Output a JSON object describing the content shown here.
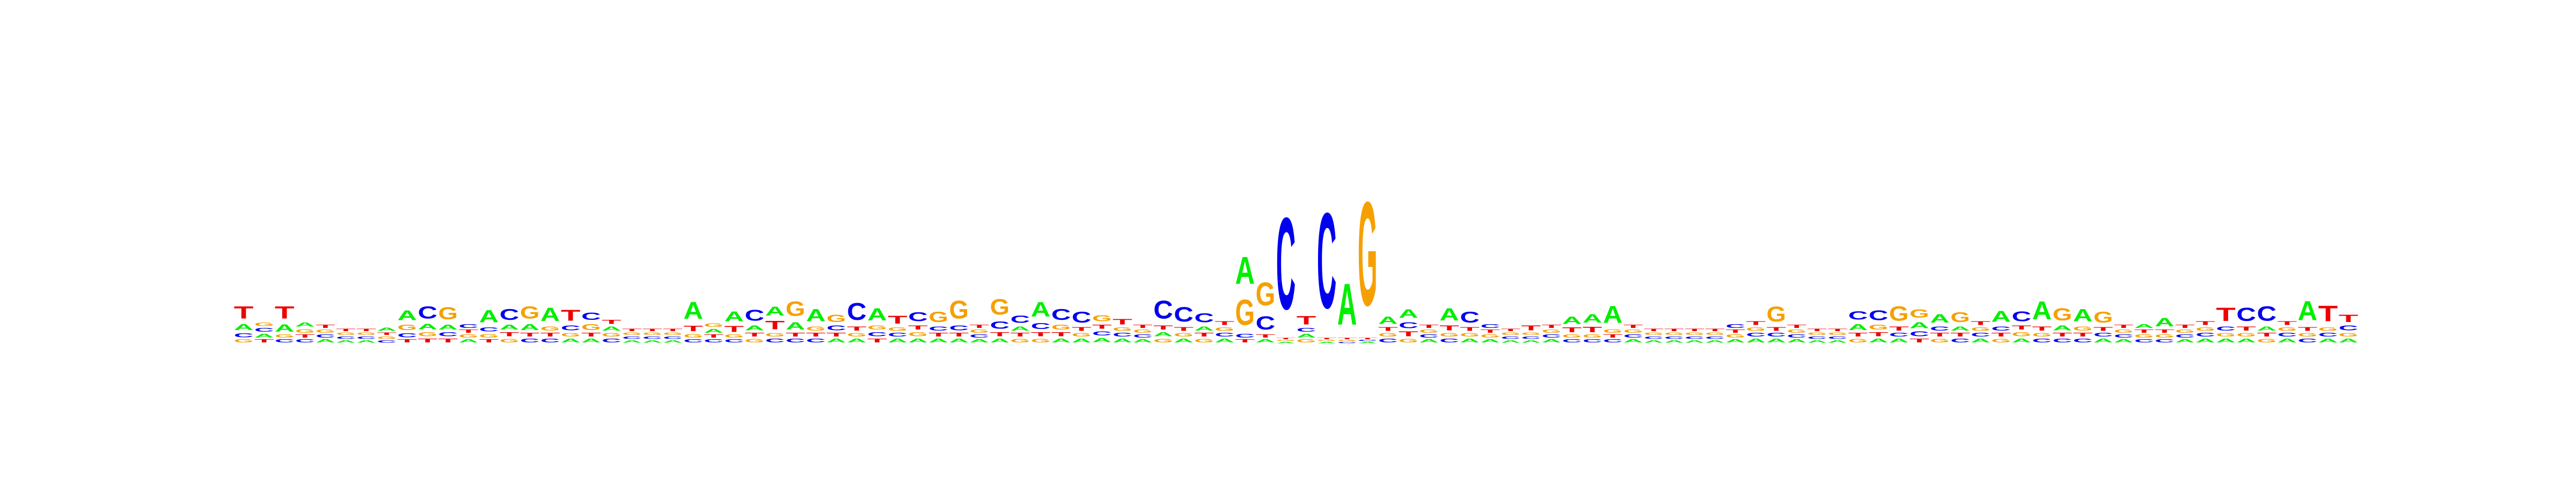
{
  "logo": {
    "type": "sequence-logo",
    "alphabet": [
      "A",
      "C",
      "G",
      "T"
    ],
    "colors": {
      "A": "#00ee00",
      "C": "#0000ee",
      "G": "#f5a000",
      "T": "#ee0000"
    },
    "max_bits": 2.0,
    "positions": [
      {
        "A": 0.1,
        "C": 0.07,
        "G": 0.05,
        "T": 0.2
      },
      {
        "A": 0.06,
        "C": 0.06,
        "G": 0.06,
        "T": 0.05
      },
      {
        "A": 0.12,
        "C": 0.05,
        "G": 0.05,
        "T": 0.2
      },
      {
        "A": 0.07,
        "C": 0.05,
        "G": 0.06,
        "T": 0.05
      },
      {
        "A": 0.05,
        "C": 0.05,
        "G": 0.05,
        "T": 0.05
      },
      {
        "A": 0.04,
        "C": 0.04,
        "G": 0.04,
        "T": 0.04
      },
      {
        "A": 0.04,
        "C": 0.04,
        "G": 0.04,
        "T": 0.04
      },
      {
        "A": 0.05,
        "C": 0.04,
        "G": 0.04,
        "T": 0.04
      },
      {
        "A": 0.16,
        "C": 0.07,
        "G": 0.09,
        "T": 0.05
      },
      {
        "A": 0.09,
        "C": 0.2,
        "G": 0.07,
        "T": 0.06
      },
      {
        "A": 0.08,
        "C": 0.07,
        "G": 0.2,
        "T": 0.06
      },
      {
        "A": 0.05,
        "C": 0.06,
        "G": 0.05,
        "T": 0.05
      },
      {
        "A": 0.2,
        "C": 0.07,
        "G": 0.06,
        "T": 0.05
      },
      {
        "A": 0.08,
        "C": 0.18,
        "G": 0.06,
        "T": 0.07
      },
      {
        "A": 0.1,
        "C": 0.06,
        "G": 0.2,
        "T": 0.06
      },
      {
        "A": 0.22,
        "C": 0.06,
        "G": 0.07,
        "T": 0.06
      },
      {
        "A": 0.06,
        "C": 0.08,
        "G": 0.06,
        "T": 0.18
      },
      {
        "A": 0.06,
        "C": 0.12,
        "G": 0.1,
        "T": 0.06
      },
      {
        "A": 0.07,
        "C": 0.06,
        "G": 0.06,
        "T": 0.07
      },
      {
        "A": 0.04,
        "C": 0.04,
        "G": 0.04,
        "T": 0.04
      },
      {
        "A": 0.04,
        "C": 0.04,
        "G": 0.04,
        "T": 0.04
      },
      {
        "A": 0.04,
        "C": 0.04,
        "G": 0.04,
        "T": 0.04
      },
      {
        "A": 0.28,
        "C": 0.05,
        "G": 0.06,
        "T": 0.09
      },
      {
        "A": 0.06,
        "C": 0.05,
        "G": 0.06,
        "T": 0.05
      },
      {
        "A": 0.16,
        "C": 0.05,
        "G": 0.05,
        "T": 0.1
      },
      {
        "A": 0.08,
        "C": 0.18,
        "G": 0.06,
        "T": 0.06
      },
      {
        "A": 0.15,
        "C": 0.06,
        "G": 0.06,
        "T": 0.14
      },
      {
        "A": 0.12,
        "C": 0.06,
        "G": 0.24,
        "T": 0.06
      },
      {
        "A": 0.2,
        "C": 0.06,
        "G": 0.07,
        "T": 0.06
      },
      {
        "A": 0.06,
        "C": 0.08,
        "G": 0.12,
        "T": 0.06
      },
      {
        "A": 0.06,
        "C": 0.28,
        "G": 0.06,
        "T": 0.07
      },
      {
        "A": 0.2,
        "C": 0.07,
        "G": 0.07,
        "T": 0.06
      },
      {
        "A": 0.06,
        "C": 0.06,
        "G": 0.06,
        "T": 0.13
      },
      {
        "A": 0.06,
        "C": 0.15,
        "G": 0.07,
        "T": 0.07
      },
      {
        "A": 0.06,
        "C": 0.07,
        "G": 0.17,
        "T": 0.06
      },
      {
        "A": 0.06,
        "C": 0.08,
        "G": 0.3,
        "T": 0.06
      },
      {
        "A": 0.05,
        "C": 0.05,
        "G": 0.05,
        "T": 0.05
      },
      {
        "A": 0.06,
        "C": 0.12,
        "G": 0.26,
        "T": 0.07
      },
      {
        "A": 0.07,
        "C": 0.12,
        "G": 0.06,
        "T": 0.06
      },
      {
        "A": 0.24,
        "C": 0.1,
        "G": 0.06,
        "T": 0.07
      },
      {
        "A": 0.06,
        "C": 0.18,
        "G": 0.08,
        "T": 0.07
      },
      {
        "A": 0.06,
        "C": 0.18,
        "G": 0.06,
        "T": 0.06
      },
      {
        "A": 0.07,
        "C": 0.07,
        "G": 0.1,
        "T": 0.07
      },
      {
        "A": 0.06,
        "C": 0.06,
        "G": 0.06,
        "T": 0.09
      },
      {
        "A": 0.05,
        "C": 0.05,
        "G": 0.05,
        "T": 0.05
      },
      {
        "A": 0.07,
        "C": 0.3,
        "G": 0.06,
        "T": 0.07
      },
      {
        "A": 0.06,
        "C": 0.24,
        "G": 0.06,
        "T": 0.06
      },
      {
        "A": 0.07,
        "C": 0.15,
        "G": 0.06,
        "T": 0.06
      },
      {
        "A": 0.06,
        "C": 0.06,
        "G": 0.06,
        "T": 0.06
      },
      {
        "A": 0.45,
        "C": 0.06,
        "G": 0.42,
        "T": 0.05
      },
      {
        "A": 0.05,
        "C": 0.22,
        "G": 0.38,
        "T": 0.05
      },
      {
        "A": 0.02,
        "C": 1.52,
        "G": 0.02,
        "T": 0.02
      },
      {
        "A": 0.06,
        "C": 0.06,
        "G": 0.05,
        "T": 0.14
      },
      {
        "A": 0.02,
        "C": 1.58,
        "G": 0.02,
        "T": 0.02
      },
      {
        "A": 0.68,
        "C": 0.02,
        "G": 0.02,
        "T": 0.02
      },
      {
        "A": 0.02,
        "C": 0.02,
        "G": 1.72,
        "T": 0.02
      },
      {
        "A": 0.12,
        "C": 0.06,
        "G": 0.06,
        "T": 0.06
      },
      {
        "A": 0.14,
        "C": 0.1,
        "G": 0.06,
        "T": 0.08
      },
      {
        "A": 0.05,
        "C": 0.05,
        "G": 0.05,
        "T": 0.05
      },
      {
        "A": 0.2,
        "C": 0.06,
        "G": 0.06,
        "T": 0.08
      },
      {
        "A": 0.06,
        "C": 0.18,
        "G": 0.06,
        "T": 0.06
      },
      {
        "A": 0.05,
        "C": 0.06,
        "G": 0.05,
        "T": 0.05
      },
      {
        "A": 0.04,
        "C": 0.04,
        "G": 0.04,
        "T": 0.04
      },
      {
        "A": 0.04,
        "C": 0.04,
        "G": 0.04,
        "T": 0.08
      },
      {
        "A": 0.05,
        "C": 0.05,
        "G": 0.05,
        "T": 0.05
      },
      {
        "A": 0.12,
        "C": 0.05,
        "G": 0.05,
        "T": 0.08
      },
      {
        "A": 0.14,
        "C": 0.05,
        "G": 0.05,
        "T": 0.09
      },
      {
        "A": 0.28,
        "C": 0.05,
        "G": 0.06,
        "T": 0.05
      },
      {
        "A": 0.05,
        "C": 0.05,
        "G": 0.05,
        "T": 0.05
      },
      {
        "A": 0.04,
        "C": 0.04,
        "G": 0.04,
        "T": 0.04
      },
      {
        "A": 0.04,
        "C": 0.04,
        "G": 0.04,
        "T": 0.04
      },
      {
        "A": 0.04,
        "C": 0.04,
        "G": 0.04,
        "T": 0.04
      },
      {
        "A": 0.04,
        "C": 0.04,
        "G": 0.04,
        "T": 0.04
      },
      {
        "A": 0.05,
        "C": 0.06,
        "G": 0.05,
        "T": 0.05
      },
      {
        "A": 0.06,
        "C": 0.06,
        "G": 0.06,
        "T": 0.06
      },
      {
        "A": 0.06,
        "C": 0.06,
        "G": 0.25,
        "T": 0.06
      },
      {
        "A": 0.05,
        "C": 0.05,
        "G": 0.05,
        "T": 0.05
      },
      {
        "A": 0.04,
        "C": 0.04,
        "G": 0.04,
        "T": 0.04
      },
      {
        "A": 0.04,
        "C": 0.04,
        "G": 0.04,
        "T": 0.04
      },
      {
        "A": 0.1,
        "C": 0.14,
        "G": 0.06,
        "T": 0.06
      },
      {
        "A": 0.06,
        "C": 0.16,
        "G": 0.08,
        "T": 0.07
      },
      {
        "A": 0.06,
        "C": 0.06,
        "G": 0.24,
        "T": 0.07
      },
      {
        "A": 0.1,
        "C": 0.08,
        "G": 0.14,
        "T": 0.06
      },
      {
        "A": 0.14,
        "C": 0.07,
        "G": 0.06,
        "T": 0.06
      },
      {
        "A": 0.07,
        "C": 0.06,
        "G": 0.16,
        "T": 0.06
      },
      {
        "A": 0.06,
        "C": 0.06,
        "G": 0.06,
        "T": 0.06
      },
      {
        "A": 0.18,
        "C": 0.07,
        "G": 0.06,
        "T": 0.06
      },
      {
        "A": 0.06,
        "C": 0.16,
        "G": 0.07,
        "T": 0.07
      },
      {
        "A": 0.3,
        "C": 0.06,
        "G": 0.06,
        "T": 0.07
      },
      {
        "A": 0.08,
        "C": 0.06,
        "G": 0.2,
        "T": 0.06
      },
      {
        "A": 0.2,
        "C": 0.06,
        "G": 0.07,
        "T": 0.06
      },
      {
        "A": 0.06,
        "C": 0.06,
        "G": 0.18,
        "T": 0.06
      },
      {
        "A": 0.05,
        "C": 0.05,
        "G": 0.05,
        "T": 0.05
      },
      {
        "A": 0.06,
        "C": 0.05,
        "G": 0.05,
        "T": 0.05
      },
      {
        "A": 0.14,
        "C": 0.05,
        "G": 0.05,
        "T": 0.05
      },
      {
        "A": 0.05,
        "C": 0.05,
        "G": 0.05,
        "T": 0.05
      },
      {
        "A": 0.06,
        "C": 0.06,
        "G": 0.06,
        "T": 0.06
      },
      {
        "A": 0.06,
        "C": 0.07,
        "G": 0.06,
        "T": 0.22
      },
      {
        "A": 0.06,
        "C": 0.22,
        "G": 0.06,
        "T": 0.07
      },
      {
        "A": 0.07,
        "C": 0.24,
        "G": 0.06,
        "T": 0.06
      },
      {
        "A": 0.06,
        "C": 0.06,
        "G": 0.06,
        "T": 0.06
      },
      {
        "A": 0.32,
        "C": 0.06,
        "G": 0.06,
        "T": 0.06
      },
      {
        "A": 0.06,
        "C": 0.06,
        "G": 0.06,
        "T": 0.26
      },
      {
        "A": 0.06,
        "C": 0.08,
        "G": 0.06,
        "T": 0.12
      }
    ]
  }
}
